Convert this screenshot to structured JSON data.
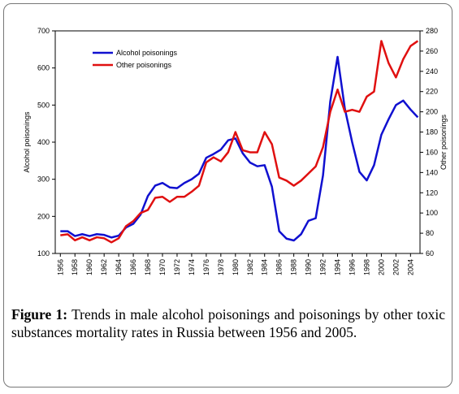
{
  "chart_data": {
    "type": "line",
    "ylabel": "Alcohol poisonings",
    "y2label": "Other poisonings",
    "caption_label": "Figure 1:",
    "caption": "Trends in male alcohol poisonings and poisonings by other toxic substances mortality rates in Russia between 1956 and 2005.",
    "x": [
      1956,
      1957,
      1958,
      1959,
      1960,
      1961,
      1962,
      1963,
      1964,
      1965,
      1966,
      1967,
      1968,
      1969,
      1970,
      1971,
      1972,
      1973,
      1974,
      1975,
      1976,
      1977,
      1978,
      1979,
      1980,
      1981,
      1982,
      1983,
      1984,
      1985,
      1986,
      1987,
      1988,
      1989,
      1990,
      1991,
      1992,
      1993,
      1994,
      1995,
      1996,
      1997,
      1998,
      1999,
      2000,
      2001,
      2002,
      2003,
      2004,
      2005
    ],
    "series": [
      {
        "name": "Alcohol poisonings",
        "color": "#1010d0",
        "axis": "y",
        "values": [
          160,
          160,
          147,
          152,
          147,
          152,
          150,
          143,
          148,
          170,
          180,
          205,
          255,
          283,
          290,
          278,
          276,
          290,
          300,
          315,
          358,
          368,
          380,
          405,
          410,
          370,
          345,
          335,
          338,
          280,
          160,
          140,
          135,
          152,
          188,
          195,
          310,
          510,
          630,
          490,
          400,
          320,
          297,
          338,
          420,
          462,
          500,
          512,
          488,
          467
        ]
      },
      {
        "name": "Other poisonings",
        "color": "#e01010",
        "axis": "y2",
        "values": [
          78,
          79,
          73,
          76,
          73,
          76,
          75,
          71,
          75,
          87,
          92,
          100,
          103,
          115,
          116,
          111,
          116,
          116,
          121,
          127,
          150,
          155,
          151,
          160,
          180,
          162,
          160,
          160,
          180,
          168,
          135,
          132,
          127,
          132,
          139,
          146,
          165,
          200,
          222,
          200,
          202,
          200,
          215,
          220,
          270,
          248,
          234,
          252,
          265,
          270
        ]
      }
    ],
    "xlim": [
      1955.3,
      2005.3
    ],
    "xticks": [
      1956,
      1958,
      1960,
      1962,
      1964,
      1966,
      1968,
      1970,
      1972,
      1974,
      1976,
      1978,
      1980,
      1982,
      1984,
      1986,
      1988,
      1990,
      1992,
      1994,
      1996,
      1998,
      2000,
      2002,
      2004
    ],
    "ylim": [
      100,
      700
    ],
    "yticks": [
      100,
      200,
      300,
      400,
      500,
      600,
      700
    ],
    "y2lim": [
      60,
      280
    ],
    "y2ticks": [
      60,
      80,
      100,
      120,
      140,
      160,
      180,
      200,
      220,
      240,
      260,
      280
    ],
    "legend": "upper left",
    "grid": false
  }
}
